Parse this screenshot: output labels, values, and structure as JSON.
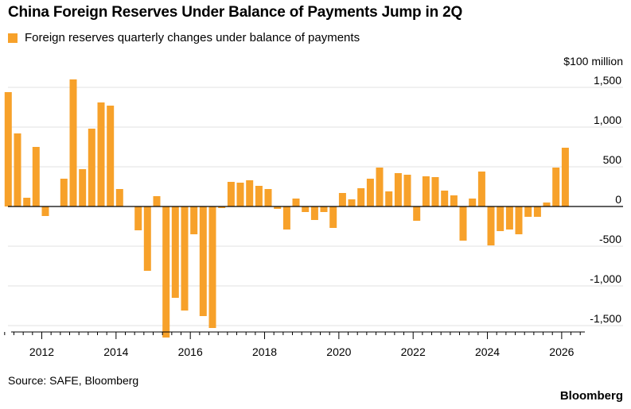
{
  "header": {
    "title": "China Foreign Reserves Under Balance of Payments Jump in 2Q"
  },
  "footer": {
    "source": "Source: SAFE, Bloomberg",
    "brand": "Bloomberg"
  },
  "colors": {
    "bar": "#f7a12a",
    "grid": "#e0e0e0",
    "zero_line": "#000000",
    "axis": "#000000"
  },
  "chart_data": {
    "type": "bar",
    "unit_label": "$100 million",
    "legend_position": "top-left",
    "grid": true,
    "ylim": [
      -1650,
      1650
    ],
    "y_ticks": [
      1500,
      1000,
      500,
      0,
      -500,
      -1000,
      -1500
    ],
    "y_tick_labels": [
      "1,500",
      "1,000",
      "500",
      "0",
      "-500",
      "-1,000",
      "-1,500"
    ],
    "xlim": [
      2011.0,
      2026.75
    ],
    "x_ticks": [
      2012,
      2014,
      2016,
      2018,
      2020,
      2022,
      2024,
      2026
    ],
    "x_tick_labels": [
      "2012",
      "2014",
      "2016",
      "2018",
      "2020",
      "2022",
      "2024",
      "2026"
    ],
    "series": [
      {
        "name": "Foreign reserves quarterly changes under balance of payments",
        "x": [
          "2011Q1",
          "2011Q2",
          "2011Q3",
          "2011Q4",
          "2012Q1",
          "2012Q2",
          "2012Q3",
          "2012Q4",
          "2013Q1",
          "2013Q2",
          "2013Q3",
          "2013Q4",
          "2014Q1",
          "2014Q2",
          "2014Q3",
          "2014Q4",
          "2015Q1",
          "2015Q2",
          "2015Q3",
          "2015Q4",
          "2016Q1",
          "2016Q2",
          "2016Q3",
          "2016Q4",
          "2017Q1",
          "2017Q2",
          "2017Q3",
          "2017Q4",
          "2018Q1",
          "2018Q2",
          "2018Q3",
          "2018Q4",
          "2019Q1",
          "2019Q2",
          "2019Q3",
          "2019Q4",
          "2020Q1",
          "2020Q2",
          "2020Q3",
          "2020Q4",
          "2021Q1",
          "2021Q2",
          "2021Q3",
          "2021Q4",
          "2022Q1",
          "2022Q2",
          "2022Q3",
          "2022Q4",
          "2023Q1",
          "2023Q2",
          "2023Q3",
          "2023Q4",
          "2024Q1",
          "2024Q2",
          "2024Q3",
          "2024Q4",
          "2025Q1",
          "2025Q2",
          "2025Q3",
          "2025Q4",
          "2026Q1",
          "2026Q2"
        ],
        "values": [
          1440,
          920,
          110,
          750,
          -120,
          0,
          350,
          1600,
          470,
          980,
          1310,
          1270,
          220,
          0,
          -300,
          -810,
          130,
          -1650,
          -1150,
          -1310,
          -350,
          -1380,
          -1530,
          -20,
          310,
          300,
          330,
          260,
          220,
          -30,
          -290,
          100,
          -70,
          -170,
          -70,
          -270,
          170,
          90,
          230,
          350,
          490,
          190,
          420,
          400,
          -180,
          380,
          370,
          200,
          140,
          -430,
          100,
          440,
          -490,
          -310,
          -290,
          -350,
          -130,
          -130,
          50,
          490,
          740,
          0
        ]
      }
    ]
  }
}
